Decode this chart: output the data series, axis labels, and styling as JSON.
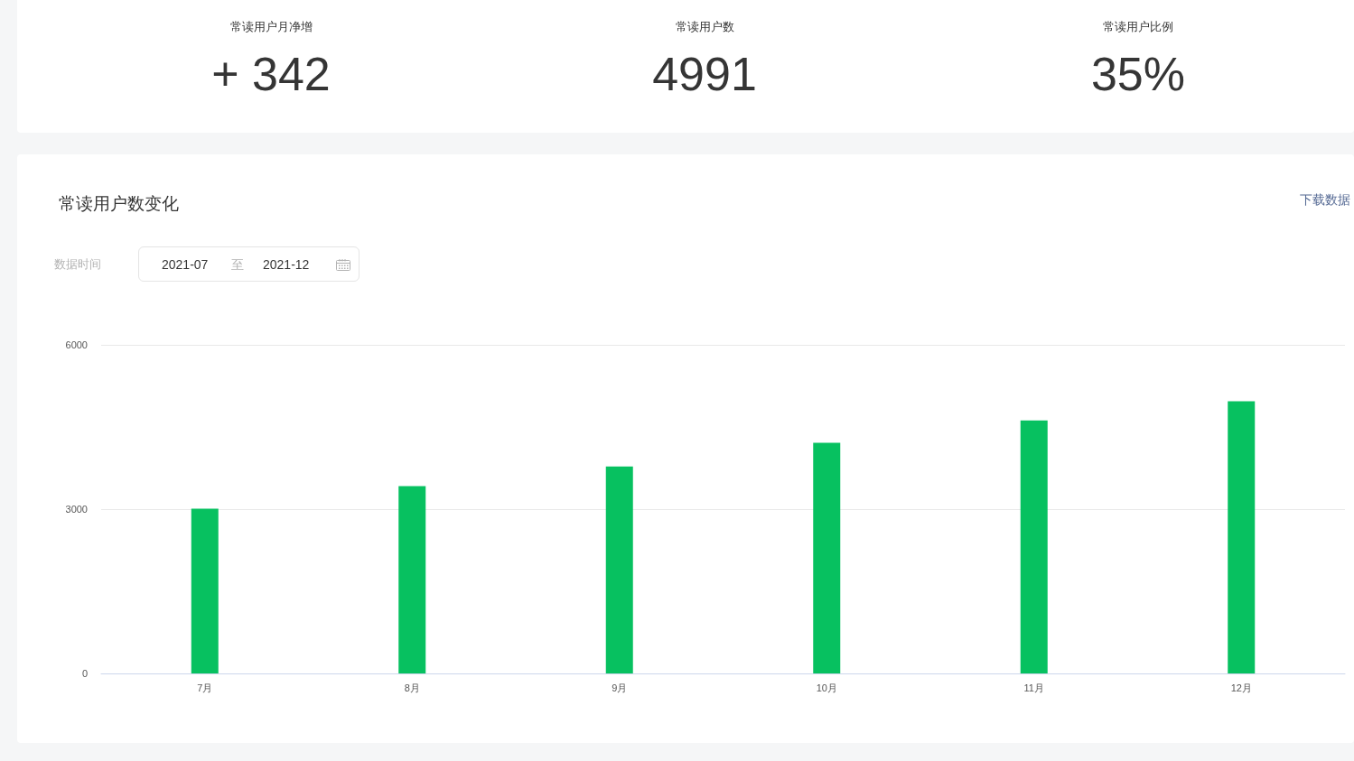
{
  "chart_data": [
    {
      "type": "other",
      "annotations": [
        "常读用户月净增",
        "+ 342",
        "常读用户数",
        "4991",
        "常读用户比例",
        "35%"
      ]
    },
    {
      "type": "bar",
      "title": "常读用户数变化",
      "annotations": [
        "下载数据",
        "数据时间",
        "2021-07",
        "至",
        "2021-12"
      ],
      "categories": [
        "7月",
        "8月",
        "9月",
        "10月",
        "11月",
        "12月"
      ],
      "values": [
        3010,
        3420,
        3780,
        4210,
        4620,
        4970
      ],
      "color": "#07c160",
      "ylim": [
        0,
        6000
      ],
      "yticks": [
        0,
        3000,
        6000
      ],
      "grid": "y"
    }
  ]
}
